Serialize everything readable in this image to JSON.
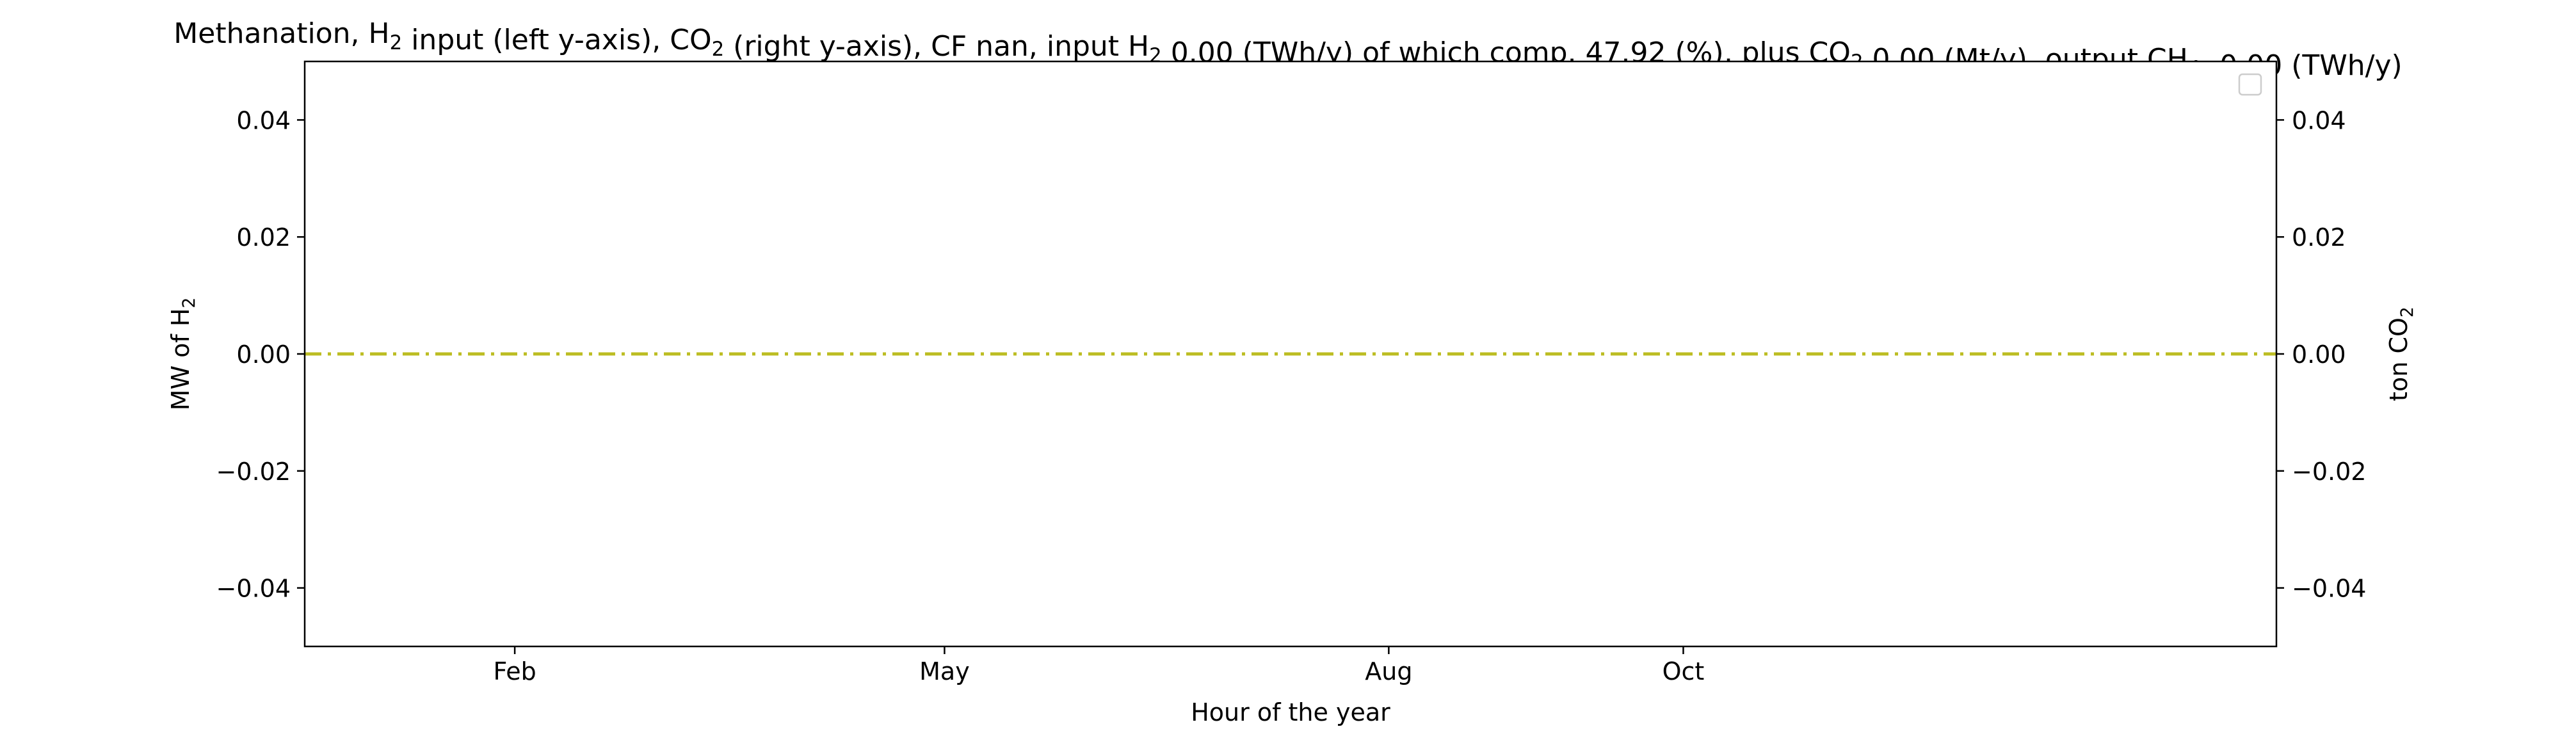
{
  "chart_data": {
    "type": "line",
    "title": {
      "parts": [
        {
          "t": "Methanation, H"
        },
        {
          "t": "2",
          "sub": true
        },
        {
          "t": " input (left y-axis), CO"
        },
        {
          "t": "2",
          "sub": true
        },
        {
          "t": " (right y-axis), CF nan, input H"
        },
        {
          "t": "2",
          "sub": true
        },
        {
          "t": " 0.00 (TWh/y) of which comp. 47.92 (%), plus CO"
        },
        {
          "t": "2",
          "sub": true
        },
        {
          "t": " 0.00 (Mt/y), output CH"
        },
        {
          "t": "4",
          "sub": true
        },
        {
          "t": " -0.00 (TWh/y)"
        }
      ]
    },
    "xlabel": "Hour of the year",
    "ylabel_left": {
      "parts": [
        {
          "t": "MW of H"
        },
        {
          "t": "2",
          "sub": true
        }
      ]
    },
    "ylabel_right": {
      "parts": [
        {
          "t": "ton CO"
        },
        {
          "t": "2",
          "sub": true
        }
      ]
    },
    "x_ticks": [
      {
        "label": "Feb",
        "value": 744
      },
      {
        "label": "May",
        "value": 2880
      },
      {
        "label": "Aug",
        "value": 5088
      },
      {
        "label": "Oct",
        "value": 6552
      }
    ],
    "xlim": [
      -300,
      9500
    ],
    "ylim_left": [
      -0.05,
      0.05
    ],
    "ylim_right": [
      -0.05,
      0.05
    ],
    "y_ticks_left": [
      "−0.04",
      "−0.02",
      "0.00",
      "0.02",
      "0.04"
    ],
    "y_ticks_left_values": [
      -0.04,
      -0.02,
      0.0,
      0.02,
      0.04
    ],
    "y_ticks_right": [
      "−0.04",
      "−0.02",
      "0.00",
      "0.02",
      "0.04"
    ],
    "y_ticks_right_values": [
      -0.04,
      -0.02,
      0.0,
      0.02,
      0.04
    ],
    "series": [
      {
        "color": "#bcbd22",
        "style": "dashdot",
        "axis": "right",
        "x": [
          -300,
          9500
        ],
        "y": [
          0.0,
          0.0
        ]
      }
    ],
    "legend": {
      "placement": "upper-right",
      "entries": []
    },
    "grid": false
  }
}
